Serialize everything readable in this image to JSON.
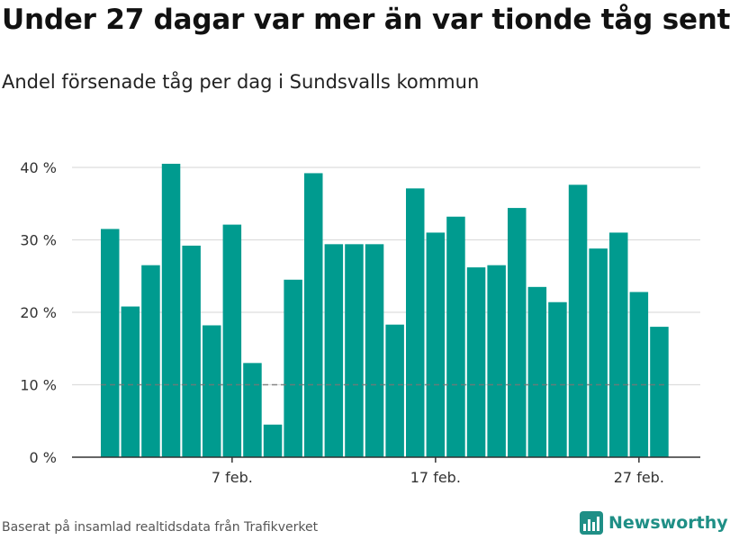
{
  "chart_data": {
    "type": "bar",
    "title": "Under 27 dagar var mer än var tionde tåg sent",
    "subtitle": "Andel försenade tåg per dag i Sundsvalls kommun",
    "values": [
      31.5,
      20.8,
      26.5,
      40.5,
      29.2,
      18.2,
      32.1,
      13.0,
      4.5,
      24.5,
      39.2,
      29.4,
      29.4,
      29.4,
      18.3,
      37.1,
      31.0,
      33.2,
      26.2,
      26.5,
      34.4,
      23.5,
      21.4,
      37.6,
      28.8,
      31.0,
      22.8,
      18.0
    ],
    "ylim": [
      0,
      40
    ],
    "yticks": [
      0,
      10,
      20,
      30,
      40
    ],
    "ytick_labels": [
      "0 %",
      "10 %",
      "20 %",
      "30 %",
      "40 %"
    ],
    "xtick_labels": [
      {
        "index": 6,
        "label": "7 feb."
      },
      {
        "index": 16,
        "label": "17 feb."
      },
      {
        "index": 26,
        "label": "27 feb."
      }
    ],
    "reference_line": {
      "value": 10,
      "style": "dashed"
    },
    "grid": true,
    "colors": {
      "bar": "#009b8f",
      "grid": "#dddddd",
      "reference": "#777777"
    }
  },
  "footer": {
    "source": "Baserat på insamlad realtidsdata från Trafikverket",
    "brand": "Newsworthy",
    "brand_icon": "bar-chart-logo-icon",
    "brand_color": "#1f8f86"
  }
}
